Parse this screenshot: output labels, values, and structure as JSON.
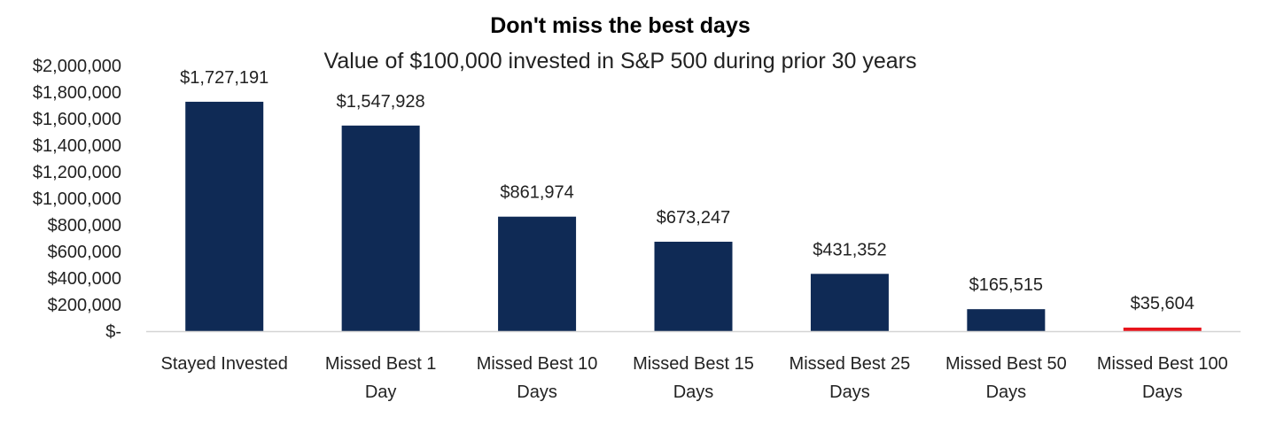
{
  "chart_data": {
    "type": "bar",
    "title": "Don't miss the best days",
    "subtitle": "Value of $100,000 invested in S&P 500 during prior 30 years",
    "xlabel": "",
    "ylabel": "",
    "ylim": [
      0,
      2000000
    ],
    "grid": false,
    "legend": "none",
    "categories": [
      [
        "Stayed Invested"
      ],
      [
        "Missed Best 1",
        "Day"
      ],
      [
        "Missed Best 10",
        "Days"
      ],
      [
        "Missed Best 15",
        "Days"
      ],
      [
        "Missed Best 25",
        "Days"
      ],
      [
        "Missed Best 50",
        "Days"
      ],
      [
        "Missed Best 100",
        "Days"
      ]
    ],
    "values": [
      1727191,
      1547928,
      861974,
      673247,
      431352,
      165515,
      35604
    ],
    "data_labels": [
      "$1,727,191",
      "$1,547,928",
      "$861,974",
      "$673,247",
      "$431,352",
      "$165,515",
      "$35,604"
    ],
    "y_ticks": [
      {
        "value": 2000000,
        "label": "$2,000,000"
      },
      {
        "value": 1800000,
        "label": "$1,800,000"
      },
      {
        "value": 1600000,
        "label": "$1,600,000"
      },
      {
        "value": 1400000,
        "label": "$1,400,000"
      },
      {
        "value": 1200000,
        "label": "$1,200,000"
      },
      {
        "value": 1000000,
        "label": "$1,000,000"
      },
      {
        "value": 800000,
        "label": "$800,000"
      },
      {
        "value": 600000,
        "label": "$600,000"
      },
      {
        "value": 400000,
        "label": "$400,000"
      },
      {
        "value": 200000,
        "label": "$200,000"
      },
      {
        "value": 0,
        "label": "$-"
      }
    ],
    "colors": {
      "bar": "#0f2a55",
      "highlight": "#e8141c",
      "axis": "#d4d4d4"
    },
    "highlight_index": 6
  }
}
